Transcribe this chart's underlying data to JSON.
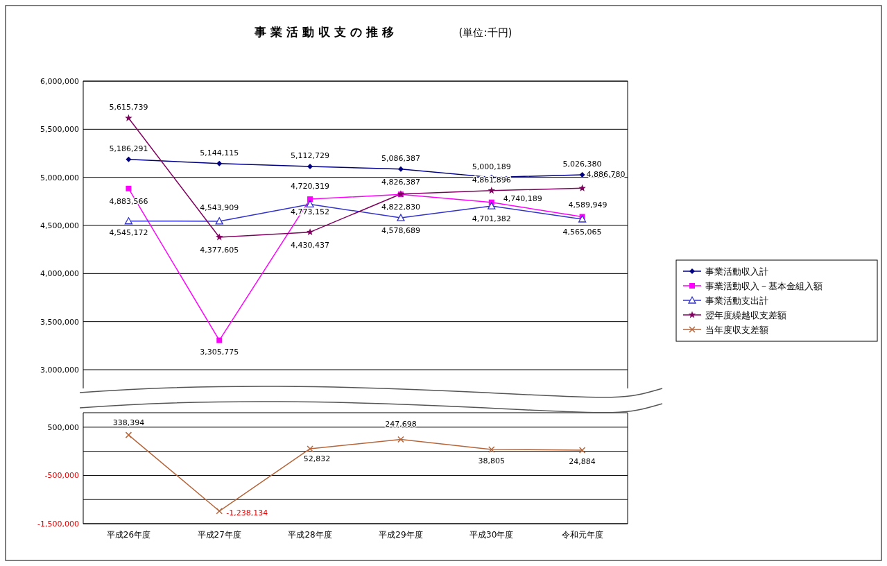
{
  "chart_data": [
    {
      "type": "line",
      "title": "事業活動収支の推移",
      "subtitle": "(単位:千円)",
      "categories": [
        null,
        null,
        null,
        null,
        null,
        null
      ],
      "series": [
        {
          "name": "事業活動収入計",
          "color": "#000080",
          "marker": "diamond",
          "values": [
            5186291,
            5144115,
            5112729,
            5086387,
            5000189,
            5026380
          ],
          "value_labels": [
            "5,186,291",
            "5,144,115",
            "5,112,729",
            "5,086,387",
            "5,000,189",
            "5,026,380"
          ]
        },
        {
          "name": "事業活動収入－基本金組入額",
          "color": "#ff00ff",
          "marker": "square",
          "values": [
            4883566,
            3305775,
            4773152,
            4822830,
            4740189,
            4589949
          ],
          "value_labels": [
            "4,883,566",
            "3,305,775",
            "4,773,152",
            "4,822,830",
            "4,740,189",
            "4,589,949"
          ]
        },
        {
          "name": "事業活動支出計",
          "color": "#3333cc",
          "marker": "triangle",
          "values": [
            4545172,
            4543909,
            4720319,
            4578689,
            4701382,
            4565065
          ],
          "value_labels": [
            "4,545,172",
            "4,543,909",
            "4,720,319",
            "4,578,689",
            "4,701,382",
            "4,565,065"
          ]
        },
        {
          "name": "翌年度繰越収支差額",
          "color": "#800060",
          "marker": "star",
          "values": [
            5615739,
            4377605,
            4430437,
            4826387,
            4861896,
            4886780
          ],
          "value_labels": [
            "5,615,739",
            "4,377,605",
            "4,430,437",
            "4,826,387",
            "4,861,896",
            "4,886,780"
          ]
        }
      ],
      "ylim": [
        3000000,
        6000000
      ],
      "yticks": [
        {
          "value": 3000000,
          "label": "3,000,000"
        },
        {
          "value": 3500000,
          "label": "3,500,000"
        },
        {
          "value": 4000000,
          "label": "4,000,000"
        },
        {
          "value": 4500000,
          "label": "4,500,000"
        },
        {
          "value": 5000000,
          "label": "5,000,000"
        },
        {
          "value": 5500000,
          "label": "5,500,000"
        },
        {
          "value": 6000000,
          "label": "6,000,000"
        }
      ],
      "grid": "y",
      "legend": "right"
    },
    {
      "type": "line",
      "categories": [
        "平成26年度",
        "平成27年度",
        "平成28年度",
        "平成29年度",
        "平成30年度",
        "令和元年度"
      ],
      "series": [
        {
          "name": "当年度収支差額",
          "color": "#b5653a",
          "marker": "cross",
          "values": [
            338394,
            -1238134,
            52832,
            247698,
            38805,
            24884
          ],
          "value_labels": [
            "338,394",
            "-1,238,134",
            "52,832",
            "247,698",
            "38,805",
            "24,884"
          ]
        }
      ],
      "ylim": [
        -1500000,
        800000
      ],
      "yticks": [
        {
          "value": 500000,
          "label": "500,000"
        },
        {
          "value": 0,
          "label": null
        },
        {
          "value": -500000,
          "label": "-500,000"
        },
        {
          "value": -1000000,
          "label": null
        },
        {
          "value": -1500000,
          "label": "-1,500,000"
        }
      ],
      "grid": "y",
      "legend": "right"
    }
  ]
}
